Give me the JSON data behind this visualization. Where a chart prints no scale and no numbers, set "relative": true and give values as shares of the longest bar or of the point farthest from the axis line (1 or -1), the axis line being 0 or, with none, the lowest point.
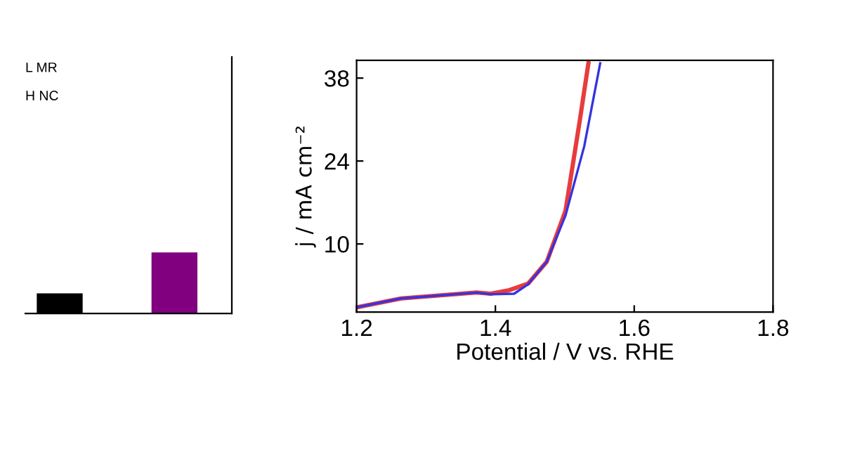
{
  "chart_data": [
    {
      "type": "bar",
      "relative": true,
      "categories": [
        null,
        null
      ],
      "colors": [
        "#000000",
        "#800080"
      ],
      "values": [
        0.33,
        1
      ],
      "annotations": [
        "L MR",
        "H NC"
      ]
    },
    {
      "type": "line",
      "xlabel": "Potential / V vs. RHE",
      "ylabel": "j / mA cm⁻²",
      "xlim": [
        1.2,
        1.8
      ],
      "xticks": [
        1.2,
        1.4,
        1.6,
        1.8
      ],
      "ylim": [
        -1.5,
        41
      ],
      "yticks": [
        10,
        24,
        38
      ],
      "line_style": "solid",
      "marker": "none",
      "grid": false,
      "legend": false,
      "series": [
        {
          "color": "#e83c3c",
          "x": [
            1.2,
            1.264,
            1.373,
            1.393,
            1.42,
            1.447,
            1.474,
            1.501,
            1.521,
            1.534
          ],
          "values": [
            -0.7,
            0.8,
            1.8,
            1.6,
            2.2,
            3.3,
            7,
            15.6,
            30.4,
            40.5
          ]
        },
        {
          "color": "#3434e0",
          "x": [
            1.2,
            1.264,
            1.373,
            1.393,
            1.427,
            1.447,
            1.474,
            1.501,
            1.528,
            1.551
          ],
          "values": [
            -0.7,
            0.8,
            1.8,
            1.5,
            1.6,
            3.2,
            7,
            14.8,
            26.5,
            40.5
          ]
        }
      ]
    }
  ]
}
